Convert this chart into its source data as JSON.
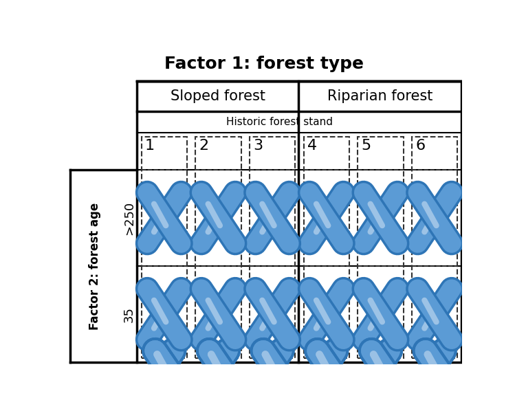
{
  "title": "Factor 1: forest type",
  "factor1_label": "Factor 1: forest type",
  "factor2_label": "Factor 2: forest age",
  "col_header1": "Sloped forest",
  "col_header2": "Riparian forest",
  "sub_header": "Historic forest stand",
  "stand_numbers": [
    1,
    2,
    3,
    4,
    5,
    6
  ],
  "row_labels": [
    ">250",
    "35"
  ],
  "bg_color": "#ffffff",
  "grid_color": "#000000",
  "dashed_color": "#555555",
  "x_color": "#5b9bd5",
  "x_dark": "#2e75b6",
  "x_light": "#9dc3e6"
}
